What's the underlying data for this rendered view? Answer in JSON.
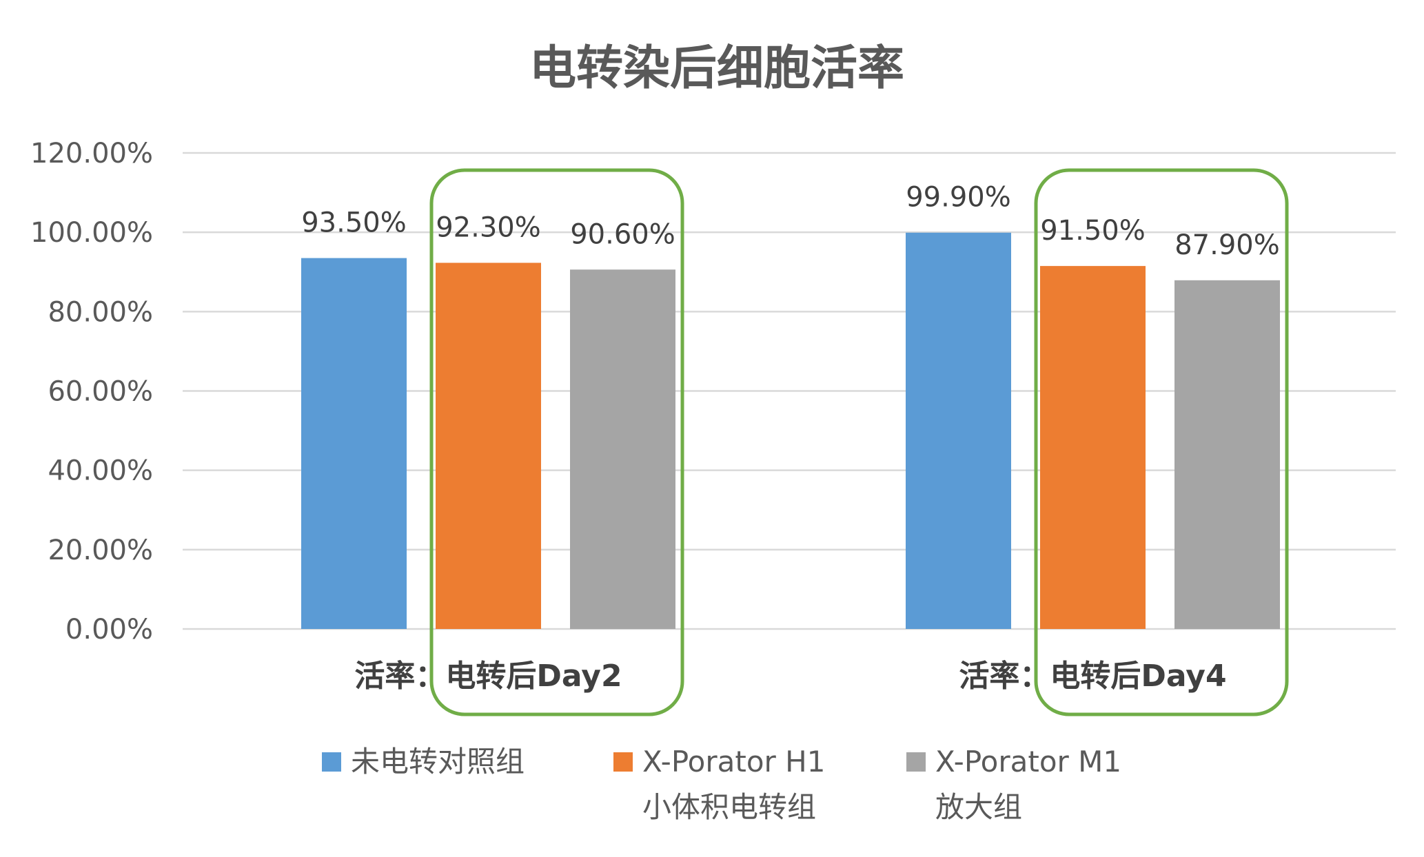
{
  "chart_data": {
    "type": "bar",
    "title": "电转染后细胞活率",
    "categories": [
      "活率：电转后Day2",
      "活率：电转后Day4"
    ],
    "series": [
      {
        "name": "未电转对照组",
        "values": [
          93.5,
          99.9
        ],
        "labels": [
          "93.50%",
          "99.90%"
        ],
        "color": "#5B9BD5"
      },
      {
        "name": "X-Porator H1 小体积电转组",
        "legend_lines": [
          "X-Porator H1",
          "小体积电转组"
        ],
        "values": [
          92.3,
          91.5
        ],
        "labels": [
          "92.30%",
          "91.50%"
        ],
        "color": "#ED7D31"
      },
      {
        "name": "X-Porator M1 放大组",
        "legend_lines": [
          "X-Porator M1",
          "放大组"
        ],
        "values": [
          90.6,
          87.9
        ],
        "labels": [
          "90.60%",
          "87.90%"
        ],
        "color": "#A5A5A5"
      }
    ],
    "y_ticks": [
      "0.00%",
      "20.00%",
      "40.00%",
      "60.00%",
      "80.00%",
      "100.00%",
      "120.00%"
    ],
    "ylim": [
      0,
      120
    ],
    "grid": true,
    "legend_position": "bottom",
    "highlight_color": "#70AD47"
  }
}
